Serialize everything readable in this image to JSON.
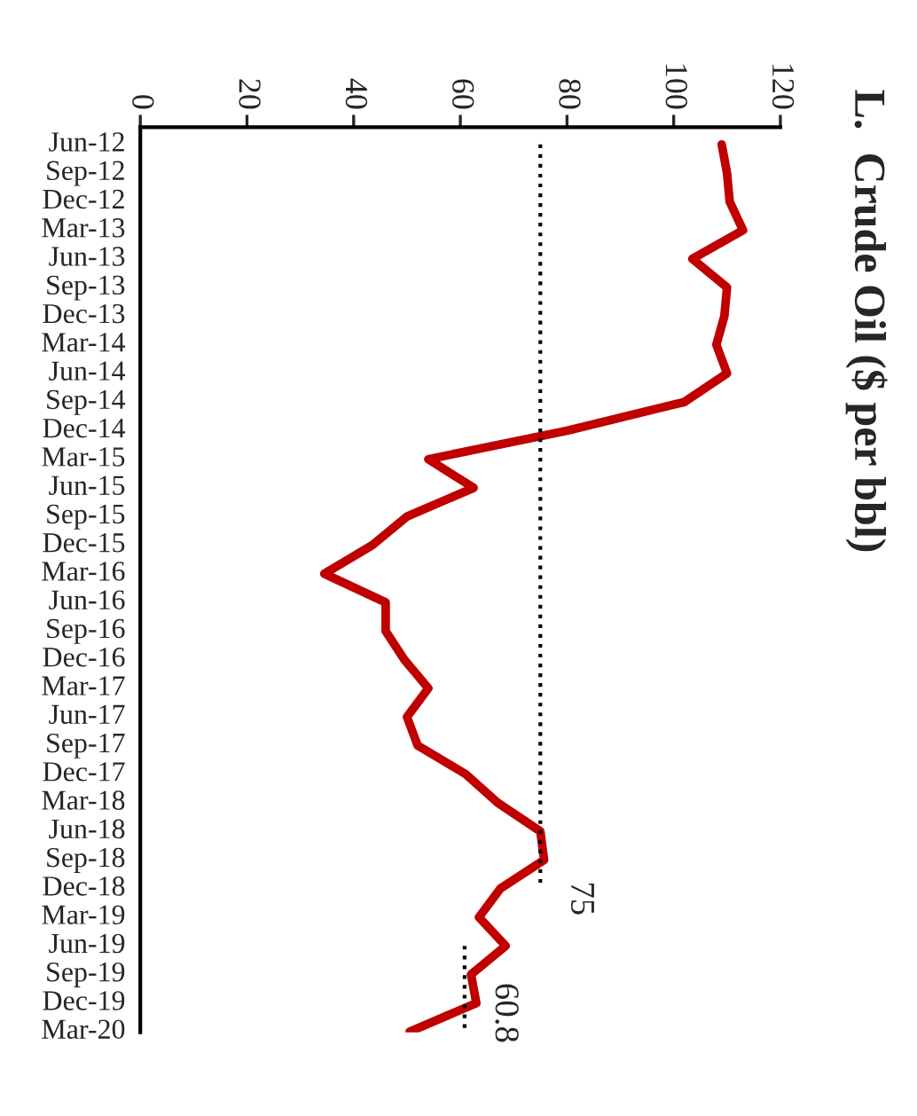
{
  "chart_data": {
    "type": "line",
    "orientation": "horizontal",
    "title": "L.  Crude Oil ($ per bbl)",
    "categories": [
      "Jun-12",
      "Sep-12",
      "Dec-12",
      "Mar-13",
      "Jun-13",
      "Sep-13",
      "Dec-13",
      "Mar-14",
      "Jun-14",
      "Sep-14",
      "Dec-14",
      "Mar-15",
      "Jun-15",
      "Sep-15",
      "Dec-15",
      "Mar-16",
      "Jun-16",
      "Sep-16",
      "Dec-16",
      "Mar-17",
      "Jun-17",
      "Sep-17",
      "Dec-17",
      "Mar-18",
      "Jun-18",
      "Sep-18",
      "Dec-18",
      "Mar-19",
      "Jun-19",
      "Sep-19",
      "Dec-19",
      "Mar-20"
    ],
    "series": [
      {
        "color": "#c00000",
        "line_style": "solid",
        "values": [
          109,
          110,
          110.5,
          113,
          103.5,
          110,
          109.5,
          108,
          110,
          102,
          80,
          54,
          62.5,
          50,
          43.5,
          34.5,
          46,
          46,
          49.5,
          54,
          50,
          52,
          61,
          67,
          75,
          75.7,
          67.5,
          63.5,
          68.5,
          62,
          63,
          50.5
        ]
      },
      {
        "color": "#000000",
        "line_style": "dotted",
        "values": [
          75,
          75,
          75,
          75,
          75,
          75,
          75,
          75,
          75,
          75,
          75,
          75,
          75,
          75,
          75,
          75,
          75,
          75,
          75,
          75,
          75,
          75,
          75,
          75,
          75,
          75,
          75,
          null,
          null,
          null,
          null,
          null
        ]
      },
      {
        "color": "#000000",
        "line_style": "dotted",
        "values": [
          null,
          null,
          null,
          null,
          null,
          null,
          null,
          null,
          null,
          null,
          null,
          null,
          null,
          null,
          null,
          null,
          null,
          null,
          null,
          null,
          null,
          null,
          null,
          null,
          null,
          null,
          null,
          null,
          60.8,
          60.8,
          60.8,
          60.8
        ]
      }
    ],
    "xlim": [
      0,
      120
    ],
    "xticks": [
      0,
      20,
      40,
      60,
      80,
      100,
      120
    ],
    "annotations": [
      {
        "text": "75",
        "x": 75,
        "y": "Dec-18"
      },
      {
        "text": "60.8",
        "x": 60.8,
        "y": "Dec-19"
      }
    ],
    "grid": false,
    "legend": false,
    "marker": "none"
  }
}
